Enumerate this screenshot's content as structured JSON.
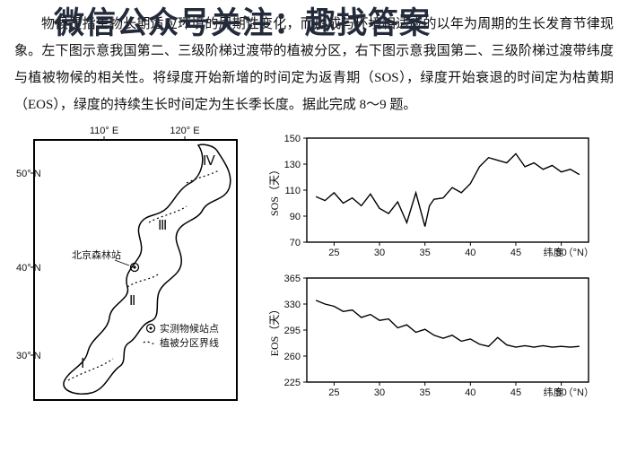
{
  "watermark": "微信公众号关注：趣找答案",
  "paragraph": {
    "p1": "物候是指生物长期适应环境的周期性变化，而形成与环境相适应的以年为周期的生长发育节律现象。左下图示意我国第二、三级阶梯过渡带的植被分区，右下图示意我国第二、三级阶梯过渡带纬度与植被物候的相关性。将绿度开始新增的时间定为返青期（SOS），绿度开始衰退的时间定为枯黄期（EOS），绿度的持续生长时间定为生长季长度。据此完成 8～9 题。"
  },
  "map": {
    "lon_ticks": [
      "110° E",
      "120° E"
    ],
    "lat_ticks": [
      "50° N",
      "40° N",
      "30° N"
    ],
    "regions": [
      "Ⅰ",
      "Ⅱ",
      "Ⅲ",
      "Ⅳ"
    ],
    "station_label": "北京森林站",
    "legend_point": "实测物候站点",
    "legend_line": "植被分区界线"
  },
  "chart_sos": {
    "y_label": "SOS（天）",
    "x_label": "纬度（°N）",
    "ylim": [
      70,
      150
    ],
    "ytick_step": 20,
    "yticks": [
      70,
      90,
      110,
      130,
      150
    ],
    "xlim": [
      22,
      53
    ],
    "xticks": [
      25,
      30,
      35,
      40,
      45,
      50
    ],
    "series": [
      [
        23,
        105
      ],
      [
        24,
        102
      ],
      [
        25,
        108
      ],
      [
        26,
        100
      ],
      [
        27,
        104
      ],
      [
        28,
        98
      ],
      [
        29,
        107
      ],
      [
        30,
        96
      ],
      [
        31,
        92
      ],
      [
        32,
        101
      ],
      [
        33,
        85
      ],
      [
        34,
        108
      ],
      [
        35,
        82
      ],
      [
        35.5,
        98
      ],
      [
        36,
        103
      ],
      [
        37,
        104
      ],
      [
        38,
        112
      ],
      [
        39,
        108
      ],
      [
        40,
        115
      ],
      [
        41,
        128
      ],
      [
        42,
        135
      ],
      [
        43,
        133
      ],
      [
        44,
        131
      ],
      [
        45,
        138
      ],
      [
        46,
        128
      ],
      [
        47,
        131
      ],
      [
        48,
        126
      ],
      [
        49,
        129
      ],
      [
        50,
        124
      ],
      [
        51,
        126
      ],
      [
        52,
        122
      ]
    ],
    "line_color": "#000000",
    "background": "#ffffff"
  },
  "chart_eos": {
    "y_label": "EOS（天）",
    "x_label": "纬度（°N）",
    "ylim": [
      225,
      365
    ],
    "ytick_step": 35,
    "yticks": [
      225,
      260,
      295,
      330,
      365
    ],
    "xlim": [
      22,
      53
    ],
    "xticks": [
      25,
      30,
      35,
      40,
      45,
      50
    ],
    "series": [
      [
        23,
        335
      ],
      [
        24,
        330
      ],
      [
        25,
        327
      ],
      [
        26,
        320
      ],
      [
        27,
        322
      ],
      [
        28,
        312
      ],
      [
        29,
        316
      ],
      [
        30,
        308
      ],
      [
        31,
        310
      ],
      [
        32,
        298
      ],
      [
        33,
        302
      ],
      [
        34,
        292
      ],
      [
        35,
        296
      ],
      [
        36,
        288
      ],
      [
        37,
        284
      ],
      [
        38,
        288
      ],
      [
        39,
        280
      ],
      [
        40,
        283
      ],
      [
        41,
        276
      ],
      [
        42,
        273
      ],
      [
        43,
        285
      ],
      [
        44,
        275
      ],
      [
        45,
        272
      ],
      [
        46,
        274
      ],
      [
        47,
        272
      ],
      [
        48,
        274
      ],
      [
        49,
        272
      ],
      [
        50,
        273
      ],
      [
        51,
        272
      ],
      [
        52,
        273
      ]
    ],
    "line_color": "#000000",
    "background": "#ffffff"
  },
  "colors": {
    "text": "#111111",
    "frame": "#000000"
  },
  "typography": {
    "body_fontsize_pt": 11,
    "watermark_fontsize_pt": 26
  }
}
